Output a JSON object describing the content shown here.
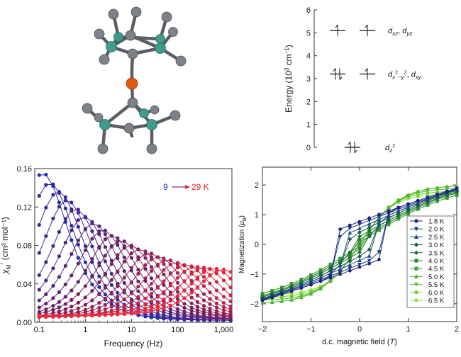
{
  "molecule": {
    "atom_colors": {
      "carbon": "#7d8288",
      "nitrogen": "#3f9b8c",
      "metal": "#e05a12"
    }
  },
  "energy_diagram": {
    "ylabel": "Energy (10",
    "ylabel_sup": "3",
    "ylabel_tail": " cm",
    "ylabel_sup2": "−1",
    "ylabel_end": ")",
    "yticks": [
      "0",
      "1",
      "2",
      "3",
      "4",
      "5",
      "6"
    ],
    "ylim": [
      0,
      6
    ],
    "levels": [
      {
        "energy": 5.1,
        "label": "d",
        "sub": "xz",
        "sep": ", ",
        "label2": "d",
        "sub2": "yz",
        "left": "up",
        "right": "up"
      },
      {
        "energy": 3.2,
        "label": "d",
        "sub": "x",
        "sup": "2",
        "sub_b": "−y",
        "sup_b": "2",
        "sep": ", ",
        "label2": "d",
        "sub2": "xy",
        "left": "pair",
        "right": "up"
      },
      {
        "energy": 0.0,
        "label": "d",
        "sub": "z",
        "sup": "2",
        "left": "pair"
      }
    ]
  },
  "chart_data": [
    {
      "type": "line",
      "title": "",
      "xlabel": "Frequency (Hz)",
      "ylabel_main": "χ",
      "ylabel_sub": "M",
      "ylabel_sup": "″",
      "ylabel_units": " (cm³ mol⁻¹)",
      "xscale": "log",
      "xlim": [
        0.08,
        1500
      ],
      "ylim": [
        0,
        0.16
      ],
      "xtick_values": [
        0.1,
        1,
        10,
        100,
        1000
      ],
      "xtick_labels": [
        "0.1",
        "1",
        "10",
        "100",
        "1,000"
      ],
      "ytick_values": [
        0,
        0.04,
        0.08,
        0.12,
        0.16
      ],
      "ytick_labels": [
        "0.00",
        "0.04",
        "0.08",
        "0.12",
        "0.16"
      ],
      "annotation": {
        "from": "9",
        "to": "29 K",
        "from_color": "#2222cc",
        "to_color": "#ee2233"
      },
      "color_start": "#1f2ab0",
      "color_end": "#f0283a",
      "x_points": [
        0.1,
        0.14,
        0.2,
        0.27,
        0.37,
        0.5,
        0.7,
        1,
        1.4,
        2,
        2.7,
        3.7,
        5,
        7,
        10,
        14,
        20,
        27,
        37,
        50,
        70,
        100,
        140,
        200,
        270,
        370,
        500,
        700,
        1000,
        1400
      ],
      "series": [
        {
          "peak_freq": 0.12,
          "peak_value": 0.155,
          "offset": 0.002
        },
        {
          "peak_freq": 0.17,
          "peak_value": 0.145,
          "offset": 0.002
        },
        {
          "peak_freq": 0.26,
          "peak_value": 0.136,
          "offset": 0.002
        },
        {
          "peak_freq": 0.4,
          "peak_value": 0.127,
          "offset": 0.002
        },
        {
          "peak_freq": 0.62,
          "peak_value": 0.118,
          "offset": 0.002
        },
        {
          "peak_freq": 0.95,
          "peak_value": 0.11,
          "offset": 0.003
        },
        {
          "peak_freq": 1.5,
          "peak_value": 0.103,
          "offset": 0.003
        },
        {
          "peak_freq": 2.4,
          "peak_value": 0.096,
          "offset": 0.003
        },
        {
          "peak_freq": 3.8,
          "peak_value": 0.09,
          "offset": 0.003
        },
        {
          "peak_freq": 6.0,
          "peak_value": 0.085,
          "offset": 0.004
        },
        {
          "peak_freq": 9.5,
          "peak_value": 0.08,
          "offset": 0.004
        },
        {
          "peak_freq": 15,
          "peak_value": 0.076,
          "offset": 0.004
        },
        {
          "peak_freq": 24,
          "peak_value": 0.072,
          "offset": 0.004
        },
        {
          "peak_freq": 38,
          "peak_value": 0.068,
          "offset": 0.005
        },
        {
          "peak_freq": 60,
          "peak_value": 0.065,
          "offset": 0.005
        },
        {
          "peak_freq": 95,
          "peak_value": 0.062,
          "offset": 0.005
        },
        {
          "peak_freq": 150,
          "peak_value": 0.06,
          "offset": 0.006
        },
        {
          "peak_freq": 240,
          "peak_value": 0.058,
          "offset": 0.006
        },
        {
          "peak_freq": 380,
          "peak_value": 0.057,
          "offset": 0.006
        },
        {
          "peak_freq": 600,
          "peak_value": 0.056,
          "offset": 0.007
        },
        {
          "peak_freq": 950,
          "peak_value": 0.055,
          "offset": 0.007
        }
      ]
    },
    {
      "type": "line",
      "title": "",
      "xlabel_prefix": "d.c. magnetic field (",
      "xlabel_unit": "T",
      "xlabel_suffix": ")",
      "ylabel_prefix": "Magnetization (",
      "ylabel_unit": "μ",
      "ylabel_unit_sub": "B",
      "ylabel_suffix": ")",
      "xlim": [
        -2,
        2
      ],
      "ylim": [
        -2.6,
        2.6
      ],
      "xtick_values": [
        -2,
        -1,
        0,
        1,
        2
      ],
      "xtick_labels": [
        "−2",
        "−1",
        "0",
        "1",
        "2"
      ],
      "ytick_values": [
        -2,
        -1,
        0,
        1,
        2
      ],
      "ytick_labels": [
        "−2",
        "−1",
        "0",
        "1",
        "2"
      ],
      "legend_position": "bottom-right",
      "x_points": [
        -2.0,
        -1.8,
        -1.6,
        -1.4,
        -1.2,
        -1.0,
        -0.8,
        -0.6,
        -0.4,
        -0.2,
        0.0,
        0.2,
        0.4,
        0.6,
        0.8,
        1.0,
        1.2,
        1.4,
        1.6,
        1.8,
        2.0
      ],
      "series": [
        {
          "name": "1.8 K",
          "marker": "circle",
          "color": "#1a237e",
          "msat": 2.45,
          "slope": 0.55,
          "hc": 0.52,
          "jump": 1.7
        },
        {
          "name": "2.0 K",
          "marker": "tri-down",
          "color": "#1e3a8a",
          "msat": 2.4,
          "slope": 0.6,
          "hc": 0.45,
          "jump": 1.5
        },
        {
          "name": "2.5 K",
          "marker": "tri-up",
          "color": "#1f4a8a",
          "msat": 2.35,
          "slope": 0.7,
          "hc": 0.35,
          "jump": 1.2
        },
        {
          "name": "3.0 K",
          "marker": "diamond",
          "color": "#18603c",
          "msat": 2.3,
          "slope": 0.8,
          "hc": 0.26,
          "jump": 0.9
        },
        {
          "name": "3.5 K",
          "marker": "diamond",
          "color": "#1f6e35",
          "msat": 2.25,
          "slope": 0.9,
          "hc": 0.18,
          "jump": 0.6
        },
        {
          "name": "4.0 K",
          "marker": "square",
          "color": "#2f8a34",
          "msat": 2.2,
          "slope": 1.0,
          "hc": 0.1,
          "jump": 0.35
        },
        {
          "name": "4.5 K",
          "marker": "square",
          "color": "#3f9e35",
          "msat": 2.1,
          "slope": 1.1,
          "hc": 0.05,
          "jump": 0.15
        },
        {
          "name": "5.0 K",
          "marker": "tri-up",
          "color": "#52b236",
          "msat": 2.0,
          "slope": 1.2,
          "hc": 0.0,
          "jump": 0.0
        },
        {
          "name": "5.5 K",
          "marker": "tri-down",
          "color": "#66c337",
          "msat": 1.9,
          "slope": 1.3,
          "hc": 0.0,
          "jump": 0.0
        },
        {
          "name": "6.0 K",
          "marker": "hexagon",
          "color": "#7ad33a",
          "msat": 1.8,
          "slope": 1.4,
          "hc": 0.0,
          "jump": 0.0
        },
        {
          "name": "6.5 K",
          "marker": "circle",
          "color": "#8fe33e",
          "msat": 1.7,
          "slope": 1.5,
          "hc": 0.0,
          "jump": 0.0
        }
      ]
    }
  ]
}
